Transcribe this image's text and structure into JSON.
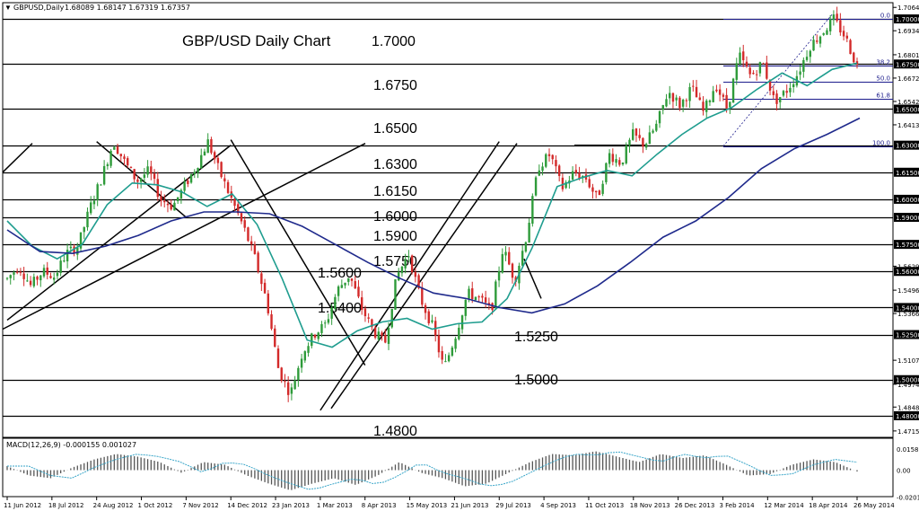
{
  "header": {
    "symbol": "GBPUSD,Daily",
    "ohlc": "1.68089 1.68147 1.67319 1.67357",
    "title": "GBP/USD Daily Chart"
  },
  "colors": {
    "background": "#ffffff",
    "up_candle": "#2e9b3a",
    "down_candle": "#d32a2a",
    "sma_fast": "#1f9d8f",
    "sma_slow": "#1f2a8c",
    "levels": "#000000",
    "fib": "#1c1c8c",
    "macd_hist": "#555555",
    "macd_signal": "#3aa6c9"
  },
  "chart_data": [
    {
      "type": "candlestick",
      "title": "GBP/USD Daily Chart",
      "x_ticks": [
        "11 Jun 2012",
        "18 Jul 2012",
        "24 Aug 2012",
        "1 Oct 2012",
        "7 Nov 2012",
        "14 Dec 2012",
        "23 Jan 2013",
        "1 Mar 2013",
        "8 Apr 2013",
        "15 May 2013",
        "21 Jun 2013",
        "29 Jul 2013",
        "4 Sep 2013",
        "11 Oct 2013",
        "18 Nov 2013",
        "26 Dec 2013",
        "3 Feb 2014",
        "12 Mar 2014",
        "18 Apr 2014",
        "26 May 2014"
      ],
      "ylim": [
        1.468,
        1.709
      ],
      "price_axis_ticks": [
        "1.70640",
        "1.70000",
        "1.69345",
        "1.68015",
        "1.67500",
        "1.66720",
        "1.65425",
        "1.65000",
        "1.64130",
        "1.63000",
        "1.61500",
        "1.60000",
        "1.59000",
        "1.57500",
        "1.56290",
        "1.56000",
        "1.54960",
        "1.54000",
        "1.53665",
        "1.52500",
        "1.51075",
        "1.50000",
        "1.49745",
        "1.48480",
        "1.48000",
        "1.47155"
      ],
      "highlighted_axis_labels": [
        "1.70000",
        "1.67500",
        "1.65000",
        "1.63000",
        "1.61500",
        "1.60000",
        "1.59000",
        "1.57500",
        "1.56000",
        "1.54000",
        "1.52500",
        "1.50000",
        "1.48000"
      ],
      "level_labels": [
        {
          "label": "1.7000",
          "value": 1.7
        },
        {
          "label": "1.6750",
          "value": 1.675
        },
        {
          "label": "1.6500",
          "value": 1.65
        },
        {
          "label": "1.6300",
          "value": 1.63
        },
        {
          "label": "1.6150",
          "value": 1.615
        },
        {
          "label": "1.6000",
          "value": 1.6
        },
        {
          "label": "1.5900",
          "value": 1.59
        },
        {
          "label": "1.5750",
          "value": 1.575
        },
        {
          "label": "1.5600",
          "value": 1.56
        },
        {
          "label": "1.5400",
          "value": 1.54
        },
        {
          "label": "1.5250",
          "value": 1.525
        },
        {
          "label": "1.5000",
          "value": 1.5
        },
        {
          "label": "1.4800",
          "value": 1.48
        }
      ],
      "fibonacci": [
        {
          "label": "0.0",
          "value": 1.7
        },
        {
          "label": "38.2",
          "value": 1.674
        },
        {
          "label": "50.0",
          "value": 1.665
        },
        {
          "label": "61.8",
          "value": 1.6555
        },
        {
          "label": "100.0",
          "value": 1.6295
        }
      ],
      "trendlines": [
        {
          "x": [
            "11 Jun 2012",
            "14 Dec 2012"
          ],
          "y": [
            1.533,
            1.63
          ],
          "name": ""
        },
        {
          "x": [
            "24 Aug 2012",
            "7 Nov 2012"
          ],
          "y": [
            1.632,
            1.59
          ],
          "name": ""
        },
        {
          "x": [
            "14 Dec 2012",
            "8 Apr 2013"
          ],
          "y": [
            1.633,
            1.508
          ],
          "name": ""
        },
        {
          "x": [
            "1 Mar 2013",
            "29 Jul 2013"
          ],
          "y": [
            1.483,
            1.632
          ],
          "name": ""
        }
      ],
      "candles": {
        "x_start": "11 Jun 2012",
        "count": 255,
        "close_path": [
          1.556,
          1.563,
          1.552,
          1.56,
          1.557,
          1.57,
          1.574,
          1.595,
          1.612,
          1.632,
          1.62,
          1.61,
          1.616,
          1.6,
          1.596,
          1.607,
          1.618,
          1.632,
          1.615,
          1.6,
          1.585,
          1.567,
          1.543,
          1.505,
          1.492,
          1.515,
          1.525,
          1.531,
          1.55,
          1.558,
          1.54,
          1.527,
          1.52,
          1.557,
          1.57,
          1.545,
          1.53,
          1.506,
          1.525,
          1.548,
          1.545,
          1.538,
          1.573,
          1.555,
          1.58,
          1.618,
          1.625,
          1.606,
          1.615,
          1.612,
          1.6,
          1.625,
          1.62,
          1.636,
          1.63,
          1.641,
          1.66,
          1.652,
          1.662,
          1.648,
          1.664,
          1.65,
          1.68,
          1.668,
          1.676,
          1.654,
          1.66,
          1.67,
          1.685,
          1.692,
          1.7,
          1.69,
          1.6736
        ]
      },
      "series": [
        {
          "type": "line",
          "values": [
            1.588,
            1.574,
            1.567,
            1.575,
            1.597,
            1.609,
            1.608,
            1.604,
            1.596,
            1.603,
            1.586,
            1.556,
            1.522,
            1.518,
            1.527,
            1.532,
            1.534,
            1.528,
            1.531,
            1.532,
            1.545,
            1.573,
            1.607,
            1.612,
            1.616,
            1.613,
            1.625,
            1.636,
            1.645,
            1.651,
            1.661,
            1.67,
            1.663,
            1.672,
            1.6755
          ]
        },
        {
          "type": "line",
          "values": [
            1.583,
            1.571,
            1.57,
            1.574,
            1.58,
            1.588,
            1.593,
            1.593,
            1.592,
            1.585,
            1.575,
            1.565,
            1.556,
            1.548,
            1.545,
            1.54,
            1.537,
            1.542,
            1.552,
            1.565,
            1.579,
            1.588,
            1.601,
            1.617,
            1.628,
            1.636,
            1.645
          ]
        }
      ]
    },
    {
      "type": "bar",
      "title": "MACD(12,26,9) -0.000155 0.001027",
      "ylim": [
        -0.02,
        0.02
      ],
      "y_ticks": [
        "0.015802",
        "0.00",
        "-0.020156"
      ],
      "histogram_path": [
        0.003,
        -0.004,
        -0.006,
        0.002,
        0.008,
        0.012,
        0.01,
        0.006,
        -0.002,
        0.006,
        0.004,
        -0.004,
        -0.01,
        -0.015,
        -0.01,
        -0.006,
        -0.011,
        -0.004,
        0.006,
        -0.002,
        -0.006,
        -0.012,
        -0.01,
        -0.002,
        0.006,
        0.012,
        0.011,
        0.014,
        0.01,
        0.006,
        0.012,
        0.009,
        0.011,
        0.004,
        -0.004,
        -0.003,
        0.004,
        0.008,
        0.006,
        -0.001
      ]
    }
  ]
}
